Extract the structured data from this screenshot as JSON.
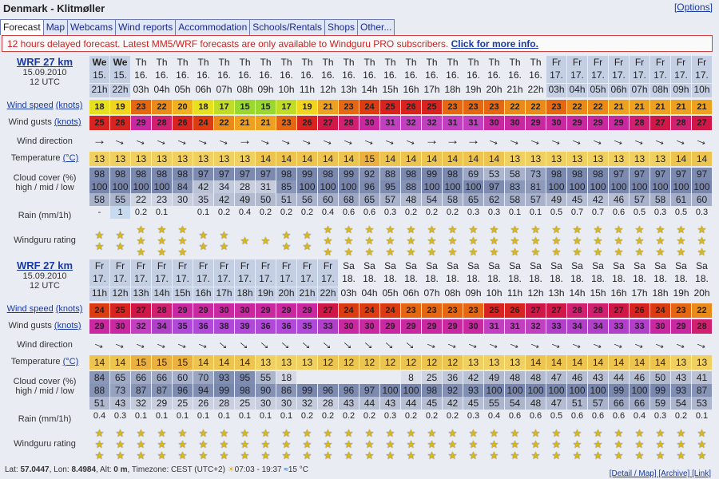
{
  "header": {
    "title": "Denmark - Klitmøller",
    "options_link": "[Options]"
  },
  "tabs": [
    "Forecast",
    "Map",
    "Webcams",
    "Wind reports",
    "Accommodation",
    "Schools/Rentals",
    "Shops",
    "Other..."
  ],
  "banner": {
    "text": "12 hours delayed forecast. Latest MM5/WRF forecasts are only available to Windguru PRO subscribers.",
    "link": "Click for more info."
  },
  "labels": {
    "wind_speed": "Wind speed",
    "knots": "(knots)",
    "wind_gusts": "Wind gusts",
    "wind_direction": "Wind direction",
    "temperature": "Temperature",
    "celsius": "(°C)",
    "cloud_cover": "Cloud cover (%)",
    "cloud_levels": "high / mid / low",
    "rain": "Rain (mm/1h)",
    "rating": "Windguru rating"
  },
  "colors": {
    "speed_scale": [
      [
        15,
        "#98d830"
      ],
      [
        17,
        "#c0dc28"
      ],
      [
        18,
        "#e6e020"
      ],
      [
        19,
        "#f0d420"
      ],
      [
        20,
        "#f0b020"
      ],
      [
        21,
        "#eea020"
      ],
      [
        22,
        "#ea8a18"
      ],
      [
        23,
        "#e46814"
      ],
      [
        24,
        "#dc3c12"
      ],
      [
        25,
        "#d82420"
      ],
      [
        27,
        "#d01848"
      ],
      [
        28,
        "#d02070"
      ],
      [
        29,
        "#c828a0"
      ],
      [
        31,
        "#c040c0"
      ],
      [
        33,
        "#b040c8"
      ],
      [
        35,
        "#b048d8"
      ]
    ],
    "temp_scale": [
      [
        12,
        "#ecc450"
      ],
      [
        13,
        "#f0d060"
      ],
      [
        14,
        "#eec450"
      ],
      [
        15,
        "#eab040"
      ]
    ],
    "cloud": "#3c5088",
    "day_shade": "#c4cfe4"
  },
  "forecasts": [
    {
      "model": "WRF 27 km",
      "init_date": "15.09.2010",
      "init_time": "12 UTC",
      "day": [
        "We",
        "We",
        "Th",
        "Th",
        "Th",
        "Th",
        "Th",
        "Th",
        "Th",
        "Th",
        "Th",
        "Th",
        "Th",
        "Th",
        "Th",
        "Th",
        "Th",
        "Th",
        "Th",
        "Th",
        "Th",
        "Th",
        "Fr",
        "Fr",
        "Fr",
        "Fr",
        "Fr",
        "Fr",
        "Fr",
        "Fr"
      ],
      "date": [
        "15.",
        "15.",
        "16.",
        "16.",
        "16.",
        "16.",
        "16.",
        "16.",
        "16.",
        "16.",
        "16.",
        "16.",
        "16.",
        "16.",
        "16.",
        "16.",
        "16.",
        "16.",
        "16.",
        "16.",
        "16.",
        "16.",
        "17.",
        "17.",
        "17.",
        "17.",
        "17.",
        "17.",
        "17.",
        "17."
      ],
      "hour": [
        "21h",
        "22h",
        "03h",
        "04h",
        "05h",
        "06h",
        "07h",
        "08h",
        "09h",
        "10h",
        "11h",
        "12h",
        "13h",
        "14h",
        "15h",
        "16h",
        "17h",
        "18h",
        "19h",
        "20h",
        "21h",
        "22h",
        "03h",
        "04h",
        "05h",
        "06h",
        "07h",
        "08h",
        "09h",
        "10h"
      ],
      "shaded_days": [
        "We",
        "Fr"
      ],
      "wind_speed": [
        18,
        19,
        23,
        22,
        20,
        18,
        17,
        15,
        15,
        17,
        19,
        21,
        23,
        24,
        25,
        26,
        25,
        23,
        23,
        23,
        22,
        22,
        23,
        22,
        22,
        21,
        21,
        21,
        21,
        21
      ],
      "wind_gusts": [
        25,
        26,
        29,
        28,
        26,
        24,
        22,
        21,
        21,
        23,
        26,
        27,
        28,
        30,
        31,
        32,
        32,
        31,
        31,
        30,
        30,
        29,
        30,
        29,
        29,
        29,
        28,
        27,
        28,
        27
      ],
      "direction": [
        "E",
        "ESE",
        "ESE",
        "ESE",
        "ESE",
        "ESE",
        "ESE",
        "E",
        "ESE",
        "ESE",
        "ESE",
        "ESE",
        "ESE",
        "ESE",
        "ESE",
        "ESE",
        "E",
        "E",
        "E",
        "ESE",
        "ESE",
        "ESE",
        "ESE",
        "ESE",
        "ESE",
        "ESE",
        "ESE",
        "ESE",
        "ESE",
        "ESE"
      ],
      "temperature": [
        13,
        13,
        13,
        13,
        13,
        13,
        13,
        13,
        14,
        14,
        14,
        14,
        14,
        15,
        14,
        14,
        14,
        14,
        14,
        14,
        13,
        13,
        13,
        13,
        13,
        13,
        13,
        13,
        14,
        14
      ],
      "cloud_high": [
        98,
        98,
        98,
        98,
        98,
        97,
        97,
        97,
        97,
        98,
        99,
        98,
        99,
        92,
        88,
        98,
        99,
        98,
        69,
        53,
        58,
        73,
        98,
        98,
        98,
        97,
        97,
        97,
        97,
        97
      ],
      "cloud_mid": [
        100,
        100,
        100,
        100,
        84,
        42,
        34,
        28,
        31,
        85,
        100,
        100,
        100,
        96,
        95,
        88,
        100,
        100,
        100,
        97,
        83,
        81,
        100,
        100,
        100,
        100,
        100,
        100,
        100,
        100
      ],
      "cloud_low": [
        58,
        55,
        22,
        23,
        30,
        35,
        42,
        49,
        50,
        51,
        56,
        60,
        68,
        65,
        57,
        48,
        54,
        58,
        65,
        62,
        58,
        57,
        49,
        45,
        42,
        46,
        57,
        58,
        61,
        60
      ],
      "rain": [
        "-",
        "1",
        "0.2",
        "0.1",
        "",
        "0.1",
        "0.2",
        "0.4",
        "0.2",
        "0.2",
        "0.2",
        "0.4",
        "0.6",
        "0.6",
        "0.3",
        "0.2",
        "0.2",
        "0.2",
        "0.3",
        "0.3",
        "0.1",
        "0.1",
        "0.5",
        "0.7",
        "0.7",
        "0.6",
        "0.5",
        "0.3",
        "0.5",
        "0.3"
      ],
      "rating": [
        2,
        2,
        3,
        3,
        3,
        2,
        2,
        1,
        1,
        2,
        2,
        3,
        3,
        3,
        3,
        3,
        3,
        3,
        3,
        3,
        3,
        3,
        3,
        3,
        3,
        3,
        3,
        3,
        3,
        3
      ]
    },
    {
      "model": "WRF 27 km",
      "init_date": "15.09.2010",
      "init_time": "12 UTC",
      "day": [
        "Fr",
        "Fr",
        "Fr",
        "Fr",
        "Fr",
        "Fr",
        "Fr",
        "Fr",
        "Fr",
        "Fr",
        "Fr",
        "Fr",
        "Sa",
        "Sa",
        "Sa",
        "Sa",
        "Sa",
        "Sa",
        "Sa",
        "Sa",
        "Sa",
        "Sa",
        "Sa",
        "Sa",
        "Sa",
        "Sa",
        "Sa",
        "Sa",
        "Sa",
        "Sa"
      ],
      "date": [
        "17.",
        "17.",
        "17.",
        "17.",
        "17.",
        "17.",
        "17.",
        "17.",
        "17.",
        "17.",
        "17.",
        "17.",
        "18.",
        "18.",
        "18.",
        "18.",
        "18.",
        "18.",
        "18.",
        "18.",
        "18.",
        "18.",
        "18.",
        "18.",
        "18.",
        "18.",
        "18.",
        "18.",
        "18.",
        "18."
      ],
      "hour": [
        "11h",
        "12h",
        "13h",
        "14h",
        "15h",
        "16h",
        "17h",
        "18h",
        "19h",
        "20h",
        "21h",
        "22h",
        "03h",
        "04h",
        "05h",
        "06h",
        "07h",
        "08h",
        "09h",
        "10h",
        "11h",
        "12h",
        "13h",
        "14h",
        "15h",
        "16h",
        "17h",
        "18h",
        "19h",
        "20h"
      ],
      "shaded_days": [
        "Fr"
      ],
      "wind_speed": [
        24,
        25,
        27,
        28,
        29,
        29,
        30,
        30,
        29,
        29,
        29,
        27,
        24,
        24,
        24,
        23,
        23,
        23,
        23,
        25,
        26,
        27,
        27,
        28,
        28,
        27,
        26,
        24,
        23,
        22
      ],
      "wind_gusts": [
        29,
        30,
        32,
        34,
        35,
        36,
        38,
        39,
        36,
        36,
        35,
        33,
        30,
        30,
        29,
        29,
        29,
        29,
        30,
        31,
        31,
        32,
        33,
        34,
        34,
        33,
        33,
        30,
        29,
        28
      ],
      "direction": [
        "ESE",
        "ESE",
        "ESE",
        "ESE",
        "ESE",
        "ESE",
        "SE",
        "SE",
        "SE",
        "SE",
        "SE",
        "SE",
        "SE",
        "SE",
        "SE",
        "SE",
        "ESE",
        "ESE",
        "ESE",
        "ESE",
        "ESE",
        "ESE",
        "ESE",
        "ESE",
        "ESE",
        "ESE",
        "ESE",
        "ESE",
        "ESE",
        "ESE"
      ],
      "temperature": [
        14,
        14,
        15,
        15,
        15,
        14,
        14,
        14,
        13,
        13,
        13,
        12,
        12,
        12,
        12,
        12,
        12,
        12,
        13,
        13,
        13,
        14,
        14,
        14,
        14,
        14,
        14,
        14,
        13,
        13
      ],
      "cloud_high": [
        84,
        65,
        66,
        66,
        60,
        70,
        93,
        95,
        55,
        18,
        "",
        "",
        "",
        "",
        "",
        8,
        25,
        36,
        42,
        49,
        48,
        48,
        47,
        46,
        43,
        44,
        46,
        50,
        43,
        41
      ],
      "cloud_mid": [
        88,
        73,
        87,
        87,
        96,
        94,
        99,
        98,
        90,
        86,
        99,
        96,
        96,
        97,
        100,
        100,
        98,
        92,
        93,
        100,
        100,
        100,
        100,
        100,
        100,
        99,
        100,
        99,
        93,
        87
      ],
      "cloud_low": [
        51,
        43,
        32,
        29,
        25,
        26,
        28,
        25,
        30,
        30,
        32,
        28,
        43,
        44,
        43,
        44,
        45,
        42,
        45,
        55,
        54,
        48,
        47,
        51,
        57,
        66,
        66,
        59,
        54,
        53
      ],
      "rain": [
        "0.4",
        "0.3",
        "0.1",
        "0.1",
        "0.1",
        "0.1",
        "0.1",
        "0.1",
        "0.1",
        "0.1",
        "0.2",
        "0.2",
        "0.2",
        "0.2",
        "0.3",
        "0.2",
        "0.2",
        "0.2",
        "0.3",
        "0.4",
        "0.6",
        "0.6",
        "0.5",
        "0.6",
        "0.6",
        "0.6",
        "0.4",
        "0.3",
        "0.2",
        "0.1"
      ],
      "rating": [
        3,
        3,
        3,
        3,
        3,
        3,
        3,
        3,
        3,
        3,
        3,
        3,
        3,
        3,
        3,
        3,
        3,
        3,
        3,
        3,
        3,
        3,
        3,
        3,
        3,
        3,
        3,
        3,
        3,
        3
      ]
    }
  ],
  "footer": {
    "lat_label": "Lat:",
    "lat": "57.0447",
    "lon_label": "Lon:",
    "lon": "8.4984",
    "alt_label": "Alt:",
    "alt": "0 m",
    "timezone_label": "Timezone:",
    "timezone": "CEST (UTC+2)",
    "sun": "07:03 - 19:37",
    "water_temp": "15 °C",
    "links": "[Detail / Map] [Archive] [Link]"
  }
}
